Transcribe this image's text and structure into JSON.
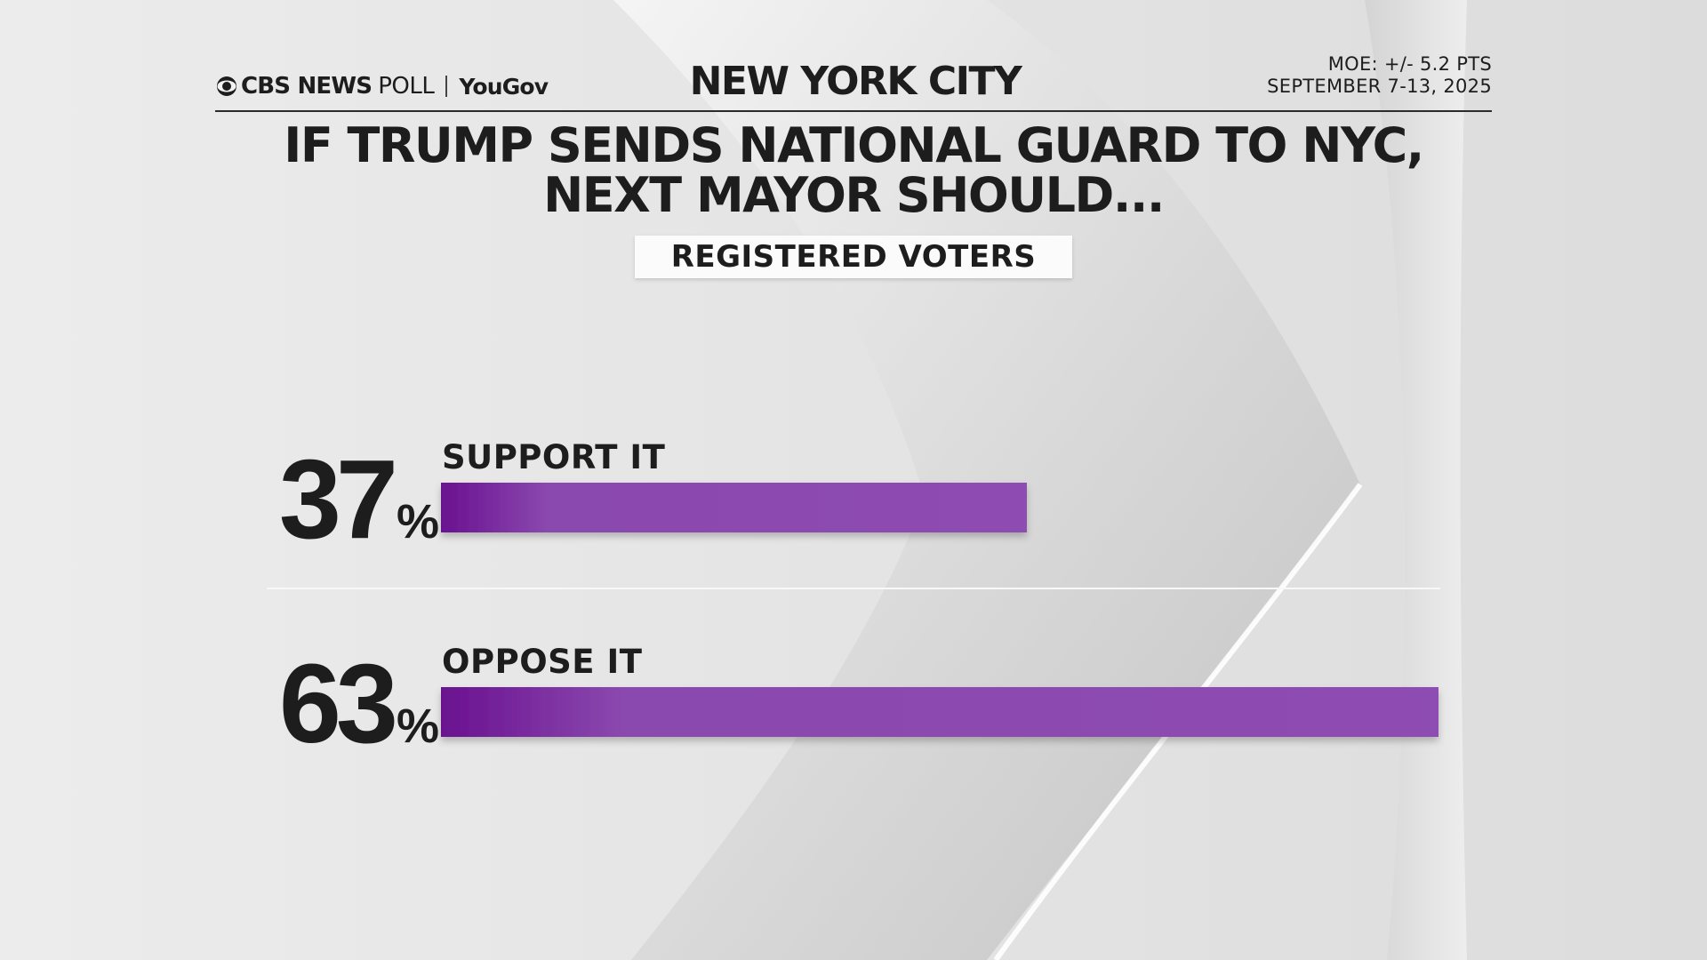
{
  "header": {
    "brand": {
      "cbs": "CBS NEWS",
      "poll": "POLL",
      "partner": "YouGov"
    },
    "location": "NEW YORK CITY",
    "moe": "MOE: +/- 5.2 PTS",
    "dates": "SEPTEMBER 7-13, 2025"
  },
  "question": {
    "line1": "IF TRUMP SENDS NATIONAL GUARD TO NYC,",
    "line2": "NEXT MAYOR SHOULD..."
  },
  "subgroup": "REGISTERED VOTERS",
  "colors": {
    "bar_start": "#6a1190",
    "bar_end": "#8e4db2",
    "text": "#1d1d1d"
  },
  "chart_data": {
    "type": "bar",
    "orientation": "horizontal",
    "categories": [
      "SUPPORT IT",
      "OPPOSE IT"
    ],
    "values": [
      37,
      63
    ],
    "value_suffix": "%",
    "xlim": [
      0,
      63
    ],
    "grid": false
  }
}
